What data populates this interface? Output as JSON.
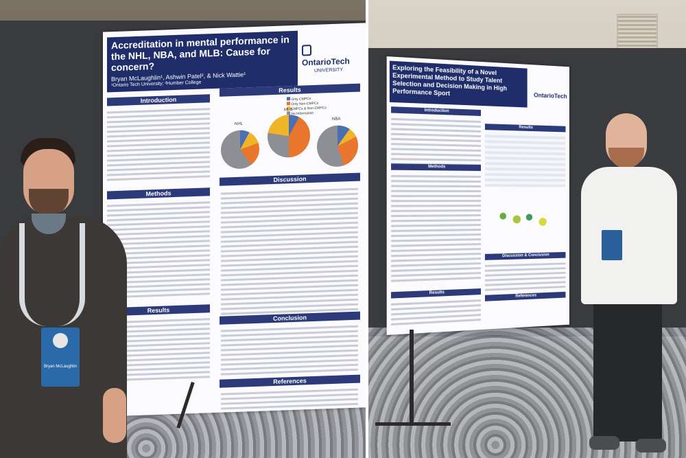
{
  "left_poster": {
    "title": "Accreditation in mental performance in the NHL, NBA, and MLB: Cause for concern?",
    "authors": "Bryan McLaughlin¹, Ashwin Patel², & Nick Wattie¹",
    "affiliation": "¹Ontario Tech University; ²Humber College",
    "logo_text": "OntarioTech",
    "logo_sub": "UNIVERSITY",
    "sections": {
      "introduction": "Introduction",
      "methods": "Methods",
      "results_left": "Results",
      "results_right": "Results",
      "discussion": "Discussion",
      "conclusion": "Conclusion",
      "references": "References"
    },
    "chart_labels": [
      "NHL",
      "NBA",
      "MLB"
    ],
    "legend": [
      "Only CMPCs",
      "Only Non-CMPCs",
      "CMPCs & Non-CMPCs",
      "No Information"
    ]
  },
  "right_poster": {
    "title": "Exploring the Feasibility of a Novel Experimental Method to Study Talent Selection and Decision Making in High Performance Sport",
    "logo_text": "OntarioTech",
    "sections": {
      "introduction": "Introduction",
      "methods": "Methods",
      "results": "Results",
      "discussion": "Discussion & Conclusion",
      "references": "References"
    }
  },
  "badge": {
    "name": "Bryan McLaughlin"
  },
  "colors": {
    "navy": "#1f2e6b",
    "orange": "#e8762c",
    "gold": "#f0b429",
    "gray": "#8d8f95"
  }
}
